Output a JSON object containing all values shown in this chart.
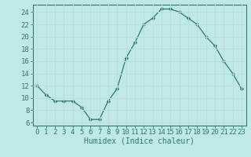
{
  "x": [
    0,
    1,
    2,
    3,
    4,
    5,
    6,
    7,
    8,
    9,
    10,
    11,
    12,
    13,
    14,
    15,
    16,
    17,
    18,
    19,
    20,
    21,
    22,
    23
  ],
  "y": [
    12,
    10.5,
    9.5,
    9.5,
    9.5,
    8.5,
    6.5,
    6.5,
    9.5,
    11.5,
    16.5,
    19,
    22,
    23,
    24.5,
    24.5,
    24,
    23,
    22,
    20,
    18.5,
    16,
    14,
    11.5
  ],
  "line_color": "#2d7a6e",
  "marker": "D",
  "marker_size": 2.2,
  "bg_color": "#c0e8e8",
  "grid_color": "#aad4d4",
  "xlabel": "Humidex (Indice chaleur)",
  "xlim": [
    -0.5,
    23.5
  ],
  "ylim": [
    5.5,
    25.2
  ],
  "yticks": [
    6,
    8,
    10,
    12,
    14,
    16,
    18,
    20,
    22,
    24
  ],
  "xticks": [
    0,
    1,
    2,
    3,
    4,
    5,
    6,
    7,
    8,
    9,
    10,
    11,
    12,
    13,
    14,
    15,
    16,
    17,
    18,
    19,
    20,
    21,
    22,
    23
  ],
  "xlabel_fontsize": 7,
  "tick_fontsize": 6.5
}
